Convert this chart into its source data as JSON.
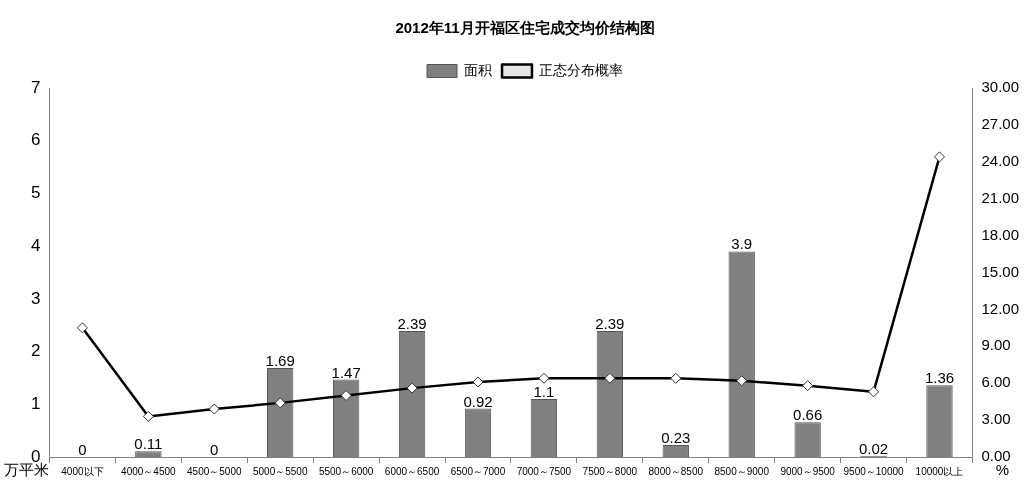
{
  "chart_data": {
    "type": "bar",
    "title": "2012年11月开福区住宅成交均价结构图",
    "categories": [
      "4000以下",
      "4000～4500",
      "4500～5000",
      "5000～5500",
      "5500～6000",
      "6000～6500",
      "6500～7000",
      "7000～7500",
      "7500～8000",
      "8000～8500",
      "8500～9000",
      "9000～9500",
      "9500～10000",
      "10000以上"
    ],
    "series": [
      {
        "name": "面积",
        "type": "bar",
        "color": "#808080",
        "values": [
          0,
          0.11,
          0,
          1.69,
          1.47,
          2.39,
          0.92,
          1.1,
          2.39,
          0.23,
          3.9,
          0.66,
          0.02,
          1.36
        ],
        "value_labels": [
          "0",
          "0.11",
          "0",
          "1.69",
          "1.47",
          "2.39",
          "0.92",
          "1.1",
          "2.39",
          "0.23",
          "3.9",
          "0.66",
          "0.02",
          "1.36"
        ]
      },
      {
        "name": "正态分布概率",
        "type": "line",
        "axis": "y2",
        "color": "#000000",
        "marker": "diamond",
        "values": [
          10.5,
          3.3,
          3.9,
          4.4,
          5.0,
          5.6,
          6.1,
          6.4,
          6.4,
          6.4,
          6.2,
          5.8,
          5.3,
          24.4
        ]
      }
    ],
    "ylabel": "万平米",
    "y2label": "%",
    "ylim": [
      0,
      7
    ],
    "yticks": [
      0,
      1,
      2,
      3,
      4,
      5,
      6,
      7
    ],
    "y2lim": [
      0,
      30
    ],
    "y2ticks": [
      {
        "value": 0,
        "label": "0.00"
      },
      {
        "value": 3,
        "label": "3.00"
      },
      {
        "value": 6,
        "label": "6.00"
      },
      {
        "value": 9,
        "label": "9.00"
      },
      {
        "value": 12,
        "label": "12.00"
      },
      {
        "value": 15,
        "label": "15.00"
      },
      {
        "value": 18,
        "label": "18.00"
      },
      {
        "value": 21,
        "label": "21.00"
      },
      {
        "value": 24,
        "label": "24.00"
      },
      {
        "value": 27,
        "label": "27.00"
      },
      {
        "value": 30,
        "label": "30.00"
      }
    ],
    "grid": false,
    "legend": "top"
  }
}
